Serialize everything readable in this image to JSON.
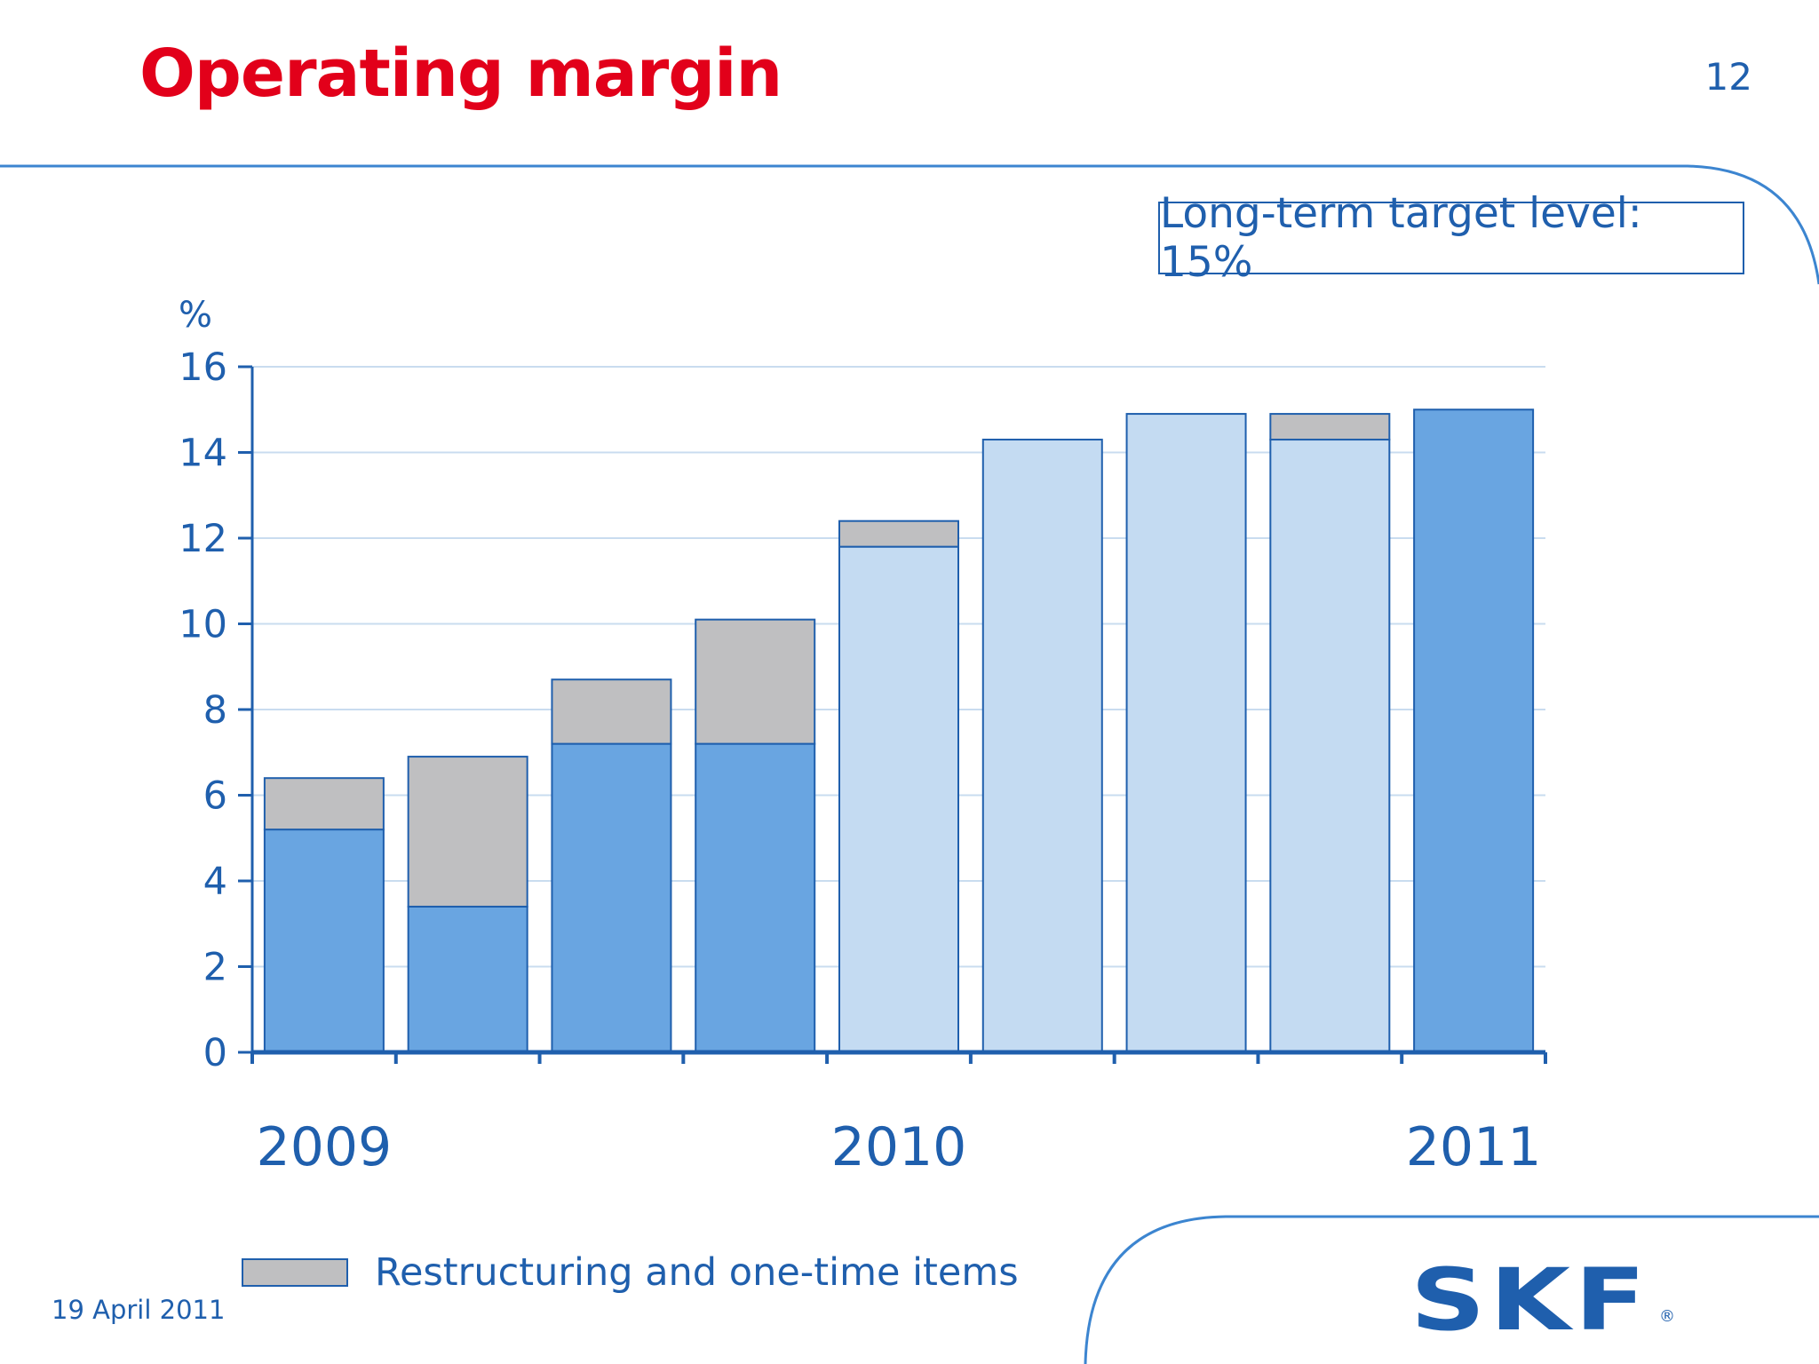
{
  "slide": {
    "title": "Operating margin",
    "page_number": "12",
    "target_note": "Long-term target level: 15%",
    "date": "19 April 2011",
    "logo": "SKF",
    "logo_mark": "®"
  },
  "colors": {
    "title_red": "#e2001a",
    "brand_blue": "#1f5fad",
    "bar_dark": "#69a5e1",
    "bar_light": "#c4dbf2",
    "restructuring_gray": "#bfbfc1",
    "gridline": "#c9dcef"
  },
  "chart_data": {
    "type": "bar",
    "stacked": true,
    "unit_label": "%",
    "ylim": [
      0,
      16
    ],
    "yticks": [
      0,
      2,
      4,
      6,
      8,
      10,
      12,
      14,
      16
    ],
    "grid": true,
    "year_labels": [
      {
        "label": "2009",
        "bar_index": 0
      },
      {
        "label": "2010",
        "bar_index": 4
      },
      {
        "label": "2011",
        "bar_index": 8
      }
    ],
    "series": [
      {
        "name": "",
        "values": [
          5.2,
          3.4,
          7.2,
          7.2,
          11.8,
          14.3,
          14.9,
          14.3,
          15.0
        ]
      },
      {
        "name": "Restructuring and one-time items",
        "values": [
          1.2,
          3.5,
          1.5,
          2.9,
          0.6,
          0,
          0,
          0.6,
          0
        ]
      }
    ],
    "bar_shades": [
      "dark",
      "dark",
      "dark",
      "dark",
      "light",
      "light",
      "light",
      "light",
      "dark"
    ],
    "legend": {
      "position": "bottom-left",
      "entries": [
        "Restructuring and one-time items"
      ]
    }
  }
}
